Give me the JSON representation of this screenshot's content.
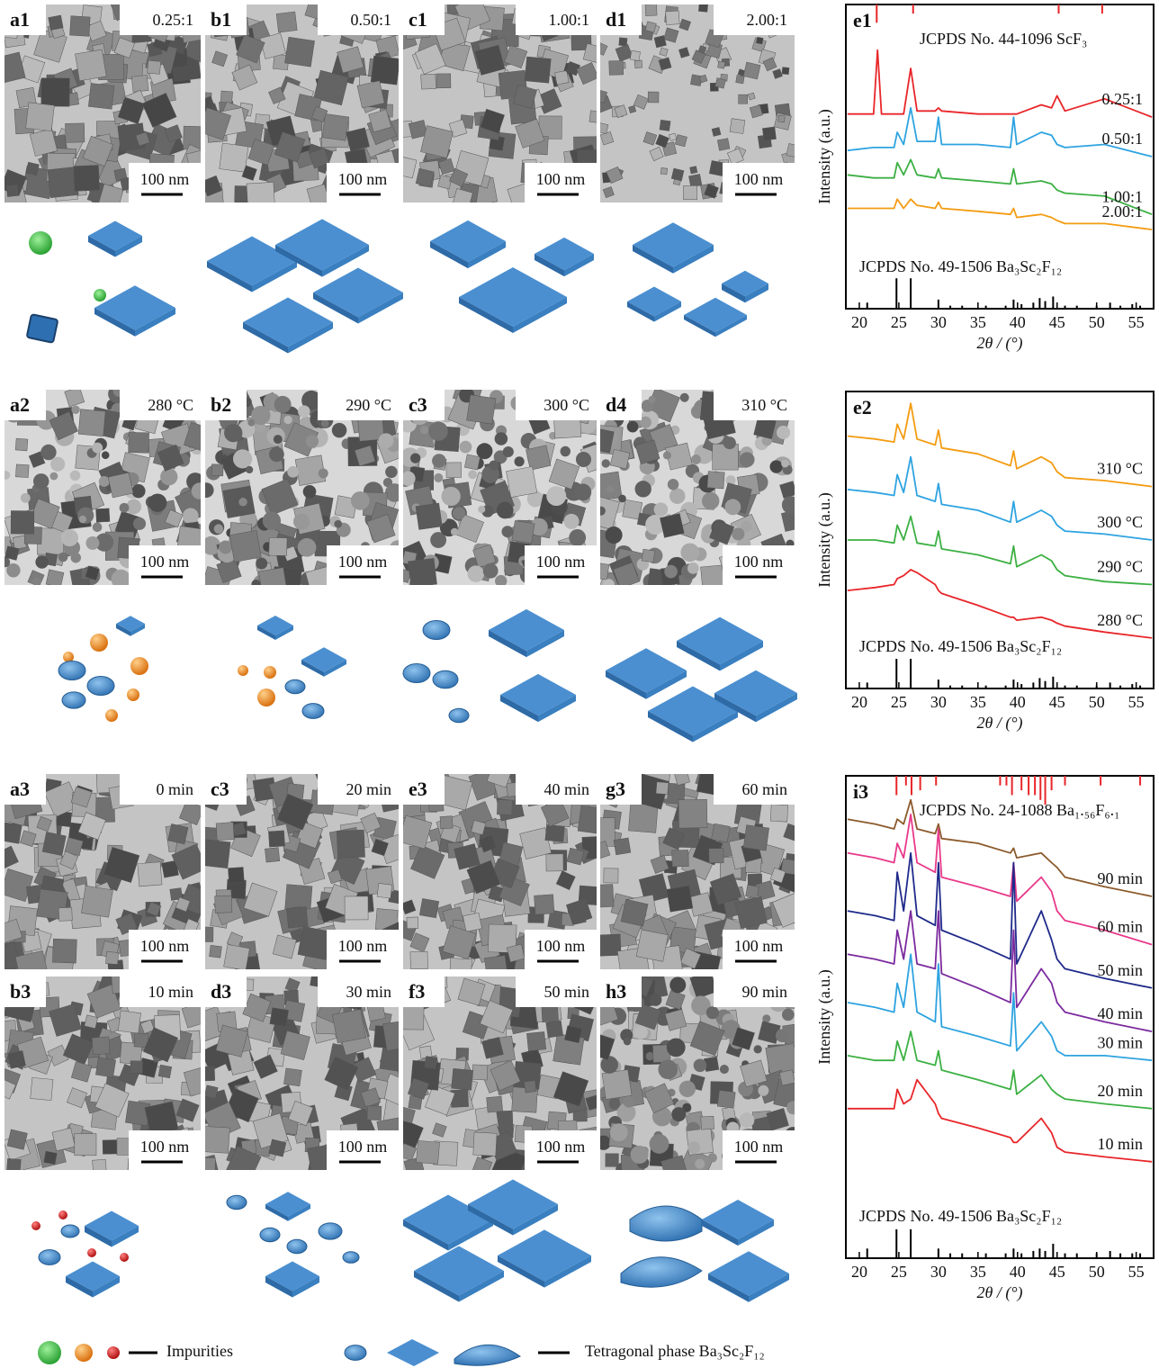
{
  "panels": [
    {
      "label": "a1",
      "condition": "0.25:1",
      "scale": "100 nm"
    },
    {
      "label": "b1",
      "condition": "0.50:1",
      "scale": "100 nm"
    },
    {
      "label": "c1",
      "condition": "1.00:1",
      "scale": "100 nm"
    },
    {
      "label": "d1",
      "condition": "2.00:1",
      "scale": "100 nm"
    },
    {
      "label": "a2",
      "condition": "280 °C",
      "scale": "100 nm"
    },
    {
      "label": "b2",
      "condition": "290 °C",
      "scale": "100 nm"
    },
    {
      "label": "c3",
      "condition": "300 °C",
      "scale": "100 nm"
    },
    {
      "label": "d4",
      "condition": "310 °C",
      "scale": "100 nm"
    },
    {
      "label": "a3",
      "condition": "0 min",
      "scale": "100 nm"
    },
    {
      "label": "c3",
      "condition": "20 min",
      "scale": "100 nm"
    },
    {
      "label": "e3",
      "condition": "40 min",
      "scale": "100 nm"
    },
    {
      "label": "g3",
      "condition": "60 min",
      "scale": "100 nm"
    },
    {
      "label": "b3",
      "condition": "10 min",
      "scale": "100 nm"
    },
    {
      "label": "d3",
      "condition": "30 min",
      "scale": "100 nm"
    },
    {
      "label": "f3",
      "condition": "50 min",
      "scale": "100 nm"
    },
    {
      "label": "h3",
      "condition": "90 min",
      "scale": "100 nm"
    }
  ],
  "legend": {
    "impurities": "Impurities",
    "tetragonal": "Tetragonal phase Ba₃Sc₂F₁₂"
  },
  "chart_data": [
    {
      "type": "line",
      "label": "e1",
      "xlabel": "2θ / (°)",
      "ylabel": "Intensity (a.u.)",
      "xlim": [
        18.3,
        57.2
      ],
      "xticks": [
        20,
        25,
        30,
        35,
        40,
        45,
        50,
        55
      ],
      "ylim": [
        0,
        100
      ],
      "x": [
        18.5,
        21.8,
        22.3,
        22.8,
        24.4,
        24.8,
        25.6,
        26.5,
        27.3,
        29.6,
        30,
        30.4,
        35,
        39.1,
        39.5,
        39.9,
        43,
        44.3,
        45,
        46,
        51,
        57
      ],
      "series": [
        {
          "name": "0.25:1",
          "color": "#e8262a",
          "values": [
            64,
            64,
            85,
            64,
            64,
            64,
            64,
            79,
            65,
            65,
            66,
            65,
            64,
            64,
            64,
            64,
            67,
            66,
            70,
            65,
            69,
            63
          ]
        },
        {
          "name": "0.50:1",
          "color": "#2ea3e0",
          "values": [
            52,
            53,
            53,
            53,
            53,
            58,
            54,
            66,
            55,
            55,
            63,
            54,
            54,
            53,
            63,
            54,
            58,
            57,
            54,
            53,
            54,
            50
          ]
        },
        {
          "name": "1.00:1",
          "color": "#3cb043",
          "values": [
            44,
            43,
            43,
            43,
            43,
            48,
            44,
            49,
            44,
            43,
            46,
            43,
            42,
            41,
            46,
            41,
            42,
            41,
            39,
            38,
            37,
            31
          ]
        },
        {
          "name": "2.00:1",
          "color": "#f39c12",
          "values": [
            33,
            33,
            33,
            33,
            33,
            36,
            33,
            36,
            34,
            33,
            35,
            33,
            32,
            31,
            33,
            30,
            31,
            30,
            29,
            28,
            28,
            26
          ]
        }
      ],
      "references": [
        {
          "name": "JCPDS No. 44-1096 ScF₃",
          "color": "#e8262a",
          "position": "top",
          "x": [
            22.2,
            26.8,
            45.2,
            50.7
          ],
          "values": [
            6,
            3,
            3,
            3
          ]
        },
        {
          "name": "JCPDS No. 49-1506 Ba₃Sc₂F₁₂",
          "color": "#000000",
          "position": "bottom",
          "x": [
            21,
            24.7,
            26.5,
            30,
            31.5,
            33,
            36,
            38.5,
            39.5,
            40.5,
            42,
            42.8,
            43.5,
            44.5,
            46,
            47.5,
            50,
            51.7,
            53,
            54.5,
            55.5
          ],
          "values": [
            2,
            10,
            10,
            3,
            1,
            1,
            1,
            1,
            3,
            1.5,
            2,
            3.5,
            2.5,
            4,
            1,
            1,
            1,
            2,
            1,
            1.5,
            1
          ]
        }
      ]
    },
    {
      "type": "line",
      "label": "e2",
      "xlabel": "2θ / (°)",
      "ylabel": "Intensity (a.u.)",
      "xlim": [
        18.3,
        57.2
      ],
      "xticks": [
        20,
        25,
        30,
        35,
        40,
        45,
        50,
        55
      ],
      "ylim": [
        0,
        100
      ],
      "x": [
        18.5,
        22,
        24.4,
        24.8,
        25.6,
        26.5,
        27.3,
        29.6,
        30,
        30.4,
        35,
        39.1,
        39.5,
        39.9,
        43,
        44.3,
        45,
        46,
        51,
        57
      ],
      "series": [
        {
          "name": "310 °C",
          "color": "#f39c12",
          "values": [
            85,
            84,
            83,
            89,
            84,
            96,
            84,
            82,
            87,
            81,
            79,
            75,
            80,
            74,
            78,
            76,
            73,
            71,
            70,
            68
          ]
        },
        {
          "name": "300 °C",
          "color": "#2ea3e0",
          "values": [
            67,
            66,
            65,
            72,
            66,
            78,
            65,
            63,
            69,
            62,
            60,
            56,
            63,
            56,
            60,
            58,
            55,
            53,
            52,
            50
          ]
        },
        {
          "name": "290 °C",
          "color": "#3cb043",
          "values": [
            50,
            50,
            49,
            55,
            50,
            58,
            49,
            48,
            53,
            47,
            45,
            42,
            48,
            41,
            45,
            43,
            40,
            38,
            36,
            35
          ]
        },
        {
          "name": "280 °C",
          "color": "#e8262a",
          "values": [
            33,
            34,
            35,
            37,
            38,
            40,
            39,
            35,
            33,
            32,
            28,
            24,
            24,
            23,
            24,
            23,
            22,
            21,
            19,
            17
          ]
        }
      ],
      "references": [
        {
          "name": "JCPDS No. 49-1506 Ba₃Sc₂F₁₂",
          "color": "#000000",
          "position": "bottom",
          "x": [
            21,
            24.7,
            26.5,
            30,
            31.5,
            33,
            36,
            38.5,
            39.5,
            40.5,
            42,
            42.8,
            43.5,
            44.5,
            46,
            47.5,
            50,
            51.7,
            53,
            54.5,
            55.5
          ],
          "values": [
            2,
            10,
            10,
            3,
            1,
            1,
            1,
            1,
            3,
            1.5,
            2,
            3.5,
            2.5,
            4,
            1,
            1,
            1,
            2,
            1,
            1.5,
            1
          ]
        }
      ]
    },
    {
      "type": "line",
      "label": "i3",
      "xlabel": "2θ / (°)",
      "ylabel": "Intensity (a.u.)",
      "xlim": [
        18.3,
        57.2
      ],
      "xticks": [
        20,
        25,
        30,
        35,
        40,
        45,
        50,
        55
      ],
      "ylim": [
        0,
        100
      ],
      "x": [
        18.5,
        22,
        24.4,
        24.8,
        25.6,
        26.5,
        27.3,
        29.6,
        30,
        30.4,
        35,
        39.1,
        39.5,
        39.9,
        43,
        44.3,
        45,
        46,
        51,
        57
      ],
      "series": [
        {
          "name": "90 min",
          "color": "#8b5a2b",
          "values": [
            91,
            90,
            89,
            91,
            90,
            95,
            89,
            88,
            90,
            87,
            86,
            84,
            85,
            83,
            84,
            82,
            81,
            79,
            77,
            75
          ]
        },
        {
          "name": "60 min",
          "color": "#e8398a",
          "values": [
            84,
            83,
            82,
            86,
            83,
            92,
            82,
            80,
            89,
            79,
            77,
            75,
            82,
            74,
            79,
            76,
            72,
            70,
            68,
            65
          ]
        },
        {
          "name": "50 min",
          "color": "#1f2a8a",
          "values": [
            72,
            71,
            70,
            80,
            72,
            84,
            71,
            69,
            82,
            68,
            65,
            62,
            82,
            61,
            72,
            66,
            62,
            60,
            58,
            56
          ]
        },
        {
          "name": "40 min",
          "color": "#7b2a9e",
          "values": [
            63,
            62,
            61,
            68,
            62,
            72,
            61,
            60,
            72,
            59,
            56,
            53,
            68,
            52,
            60,
            57,
            53,
            51,
            49,
            47
          ]
        },
        {
          "name": "30 min",
          "color": "#2ea3e0",
          "values": [
            53,
            52,
            51,
            57,
            52,
            63,
            51,
            49,
            61,
            48,
            46,
            44,
            55,
            43,
            49,
            46,
            43,
            42,
            42,
            41
          ]
        },
        {
          "name": "20 min",
          "color": "#3cb043",
          "values": [
            42,
            41,
            41,
            45,
            41,
            47,
            41,
            40,
            43,
            39,
            37,
            35,
            39,
            34,
            38,
            35,
            34,
            33,
            32,
            31
          ]
        },
        {
          "name": "10 min",
          "color": "#e8262a",
          "values": [
            31,
            31,
            31,
            35,
            32,
            33,
            37,
            32,
            30,
            29,
            27,
            25,
            24,
            24,
            29,
            26,
            23,
            22,
            21,
            20
          ]
        }
      ],
      "references": [
        {
          "name": "JCPDS No. 24-1088 Ba₁.₅₆F₆.₁",
          "color": "#e8262a",
          "position": "top",
          "x": [
            24.7,
            25.9,
            26.6,
            27.7,
            29.7,
            37.8,
            38.6,
            39.3,
            40.5,
            41.4,
            42.2,
            42.9,
            43.5,
            44.3,
            46,
            50.5,
            55.5
          ],
          "values": [
            4,
            2,
            4,
            3,
            2,
            2,
            2,
            4,
            3,
            4,
            4,
            5,
            6,
            3,
            2,
            2,
            2
          ]
        },
        {
          "name": "JCPDS No. 49-1506 Ba₃Sc₂F₁₂",
          "color": "#000000",
          "position": "bottom",
          "x": [
            21,
            24.7,
            26.5,
            30,
            31.5,
            33,
            36,
            38.5,
            39.5,
            40.5,
            42,
            42.8,
            43.5,
            44.5,
            46,
            47.5,
            50,
            51.7,
            53,
            54.5,
            55.5
          ],
          "values": [
            2,
            6,
            6,
            2,
            1,
            1,
            1,
            1,
            2,
            1,
            1.5,
            2,
            1.5,
            3,
            1,
            1,
            1,
            1.5,
            1,
            1,
            1
          ]
        }
      ]
    }
  ]
}
